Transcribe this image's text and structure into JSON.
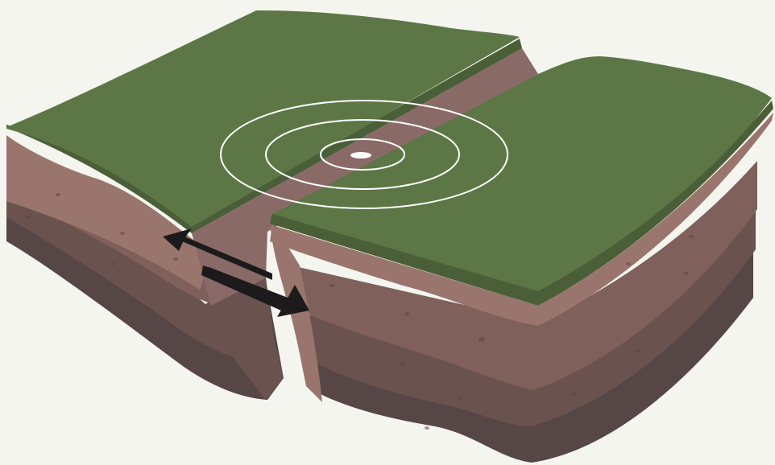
{
  "diagram": {
    "type": "strike-slip-fault-block",
    "labels": [],
    "colors": {
      "background": "#f5f5f0",
      "grass_top": "#5d7646",
      "grass_edge": "#4a5f38",
      "soil_light": "#9a756d",
      "soil_mid": "#80605a",
      "soil_dark": "#6a524f",
      "soil_darkest": "#574646",
      "fault_face": "#8a6a67",
      "arrow": "#1c1a1a",
      "ripple": "#ffffff"
    },
    "icons": {
      "motion_arrows": "double-headed-arrow-pair",
      "epicenter": "concentric-ripple-icon"
    }
  }
}
